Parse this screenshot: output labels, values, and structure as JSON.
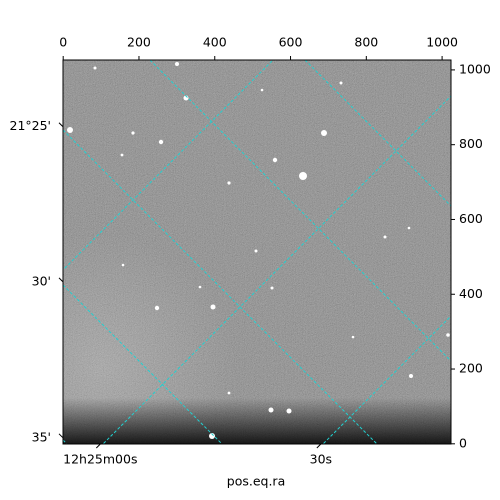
{
  "chart_data": {
    "type": "image",
    "x_label": "pos.eq.ra",
    "xlim": [
      -0.5,
      1023.5
    ],
    "ylim": [
      -0.5,
      1026.5
    ],
    "xticks": [
      0,
      200,
      400,
      600,
      800,
      1000
    ],
    "yticks": [
      0,
      200,
      400,
      600,
      800,
      1000
    ],
    "ra_ticks": [
      {
        "value": 98,
        "label": "12h25m00s"
      },
      {
        "value": 680,
        "label": "30s"
      }
    ],
    "dec_ticks": [
      {
        "value": 848,
        "label": "21°25'"
      },
      {
        "value": 433,
        "label": "30'"
      },
      {
        "value": 16,
        "label": "35'"
      }
    ],
    "grid_color": "#22d0d0"
  }
}
